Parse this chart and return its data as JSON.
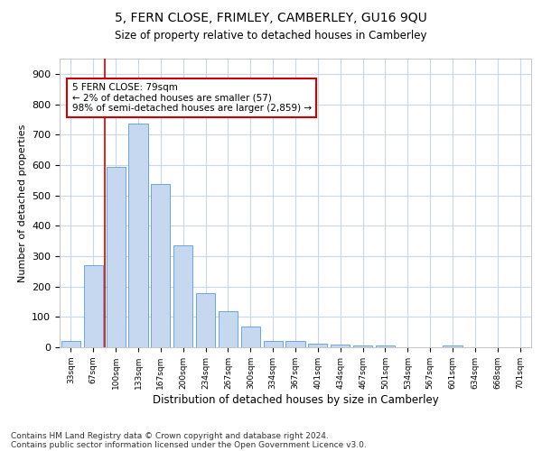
{
  "title": "5, FERN CLOSE, FRIMLEY, CAMBERLEY, GU16 9QU",
  "subtitle": "Size of property relative to detached houses in Camberley",
  "xlabel": "Distribution of detached houses by size in Camberley",
  "ylabel": "Number of detached properties",
  "bar_color": "#c5d8f0",
  "bar_edge_color": "#5b9bd5",
  "grid_color": "#c8d8ea",
  "background_color": "#ffffff",
  "categories": [
    "33sqm",
    "67sqm",
    "100sqm",
    "133sqm",
    "167sqm",
    "200sqm",
    "234sqm",
    "267sqm",
    "300sqm",
    "334sqm",
    "367sqm",
    "401sqm",
    "434sqm",
    "467sqm",
    "501sqm",
    "534sqm",
    "567sqm",
    "601sqm",
    "634sqm",
    "668sqm",
    "701sqm"
  ],
  "values": [
    20,
    270,
    595,
    737,
    537,
    335,
    178,
    118,
    67,
    22,
    20,
    12,
    8,
    7,
    5,
    0,
    0,
    7,
    0,
    0,
    0
  ],
  "ylim": [
    0,
    950
  ],
  "yticks": [
    0,
    100,
    200,
    300,
    400,
    500,
    600,
    700,
    800,
    900
  ],
  "property_line_x": 1.5,
  "annotation_line1": "5 FERN CLOSE: 79sqm",
  "annotation_line2": "← 2% of detached houses are smaller (57)",
  "annotation_line3": "98% of semi-detached houses are larger (2,859) →",
  "annotation_box_color": "#ffffff",
  "annotation_box_edge_color": "#cc0000",
  "property_line_color": "#cc0000",
  "footer_line1": "Contains HM Land Registry data © Crown copyright and database right 2024.",
  "footer_line2": "Contains public sector information licensed under the Open Government Licence v3.0."
}
